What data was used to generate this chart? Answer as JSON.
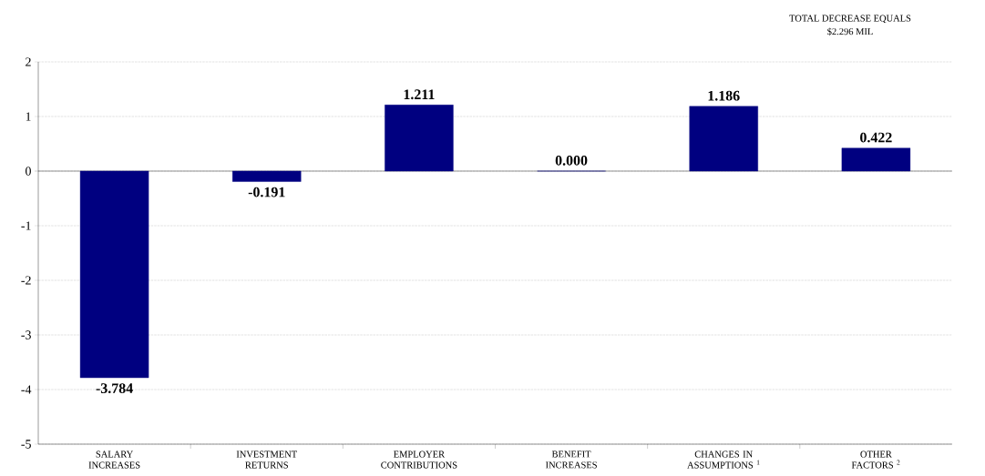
{
  "chart_data": {
    "type": "bar",
    "categories": [
      "SALARY INCREASES",
      "INVESTMENT RETURNS",
      "EMPLOYER CONTRIBUTIONS",
      "BENEFIT INCREASES",
      "CHANGES IN ASSUMPTIONS $^{1}$",
      "OTHER FACTORS $^{2}$"
    ],
    "values": [
      -3.784,
      -0.191,
      1.211,
      0.0,
      1.186,
      0.422
    ],
    "value_labels": [
      "-3.784",
      "-0.191",
      "1.211",
      "0.000",
      "1.186",
      "0.422"
    ],
    "color": "#000080",
    "ylim": [
      -5,
      2
    ],
    "yticks": [
      -5,
      -4,
      -3,
      -2,
      -1,
      0,
      1,
      2
    ],
    "grid": "y",
    "annotations": [
      "TOTAL DECREASE EQUALS",
      "$2.296 MIL"
    ]
  }
}
